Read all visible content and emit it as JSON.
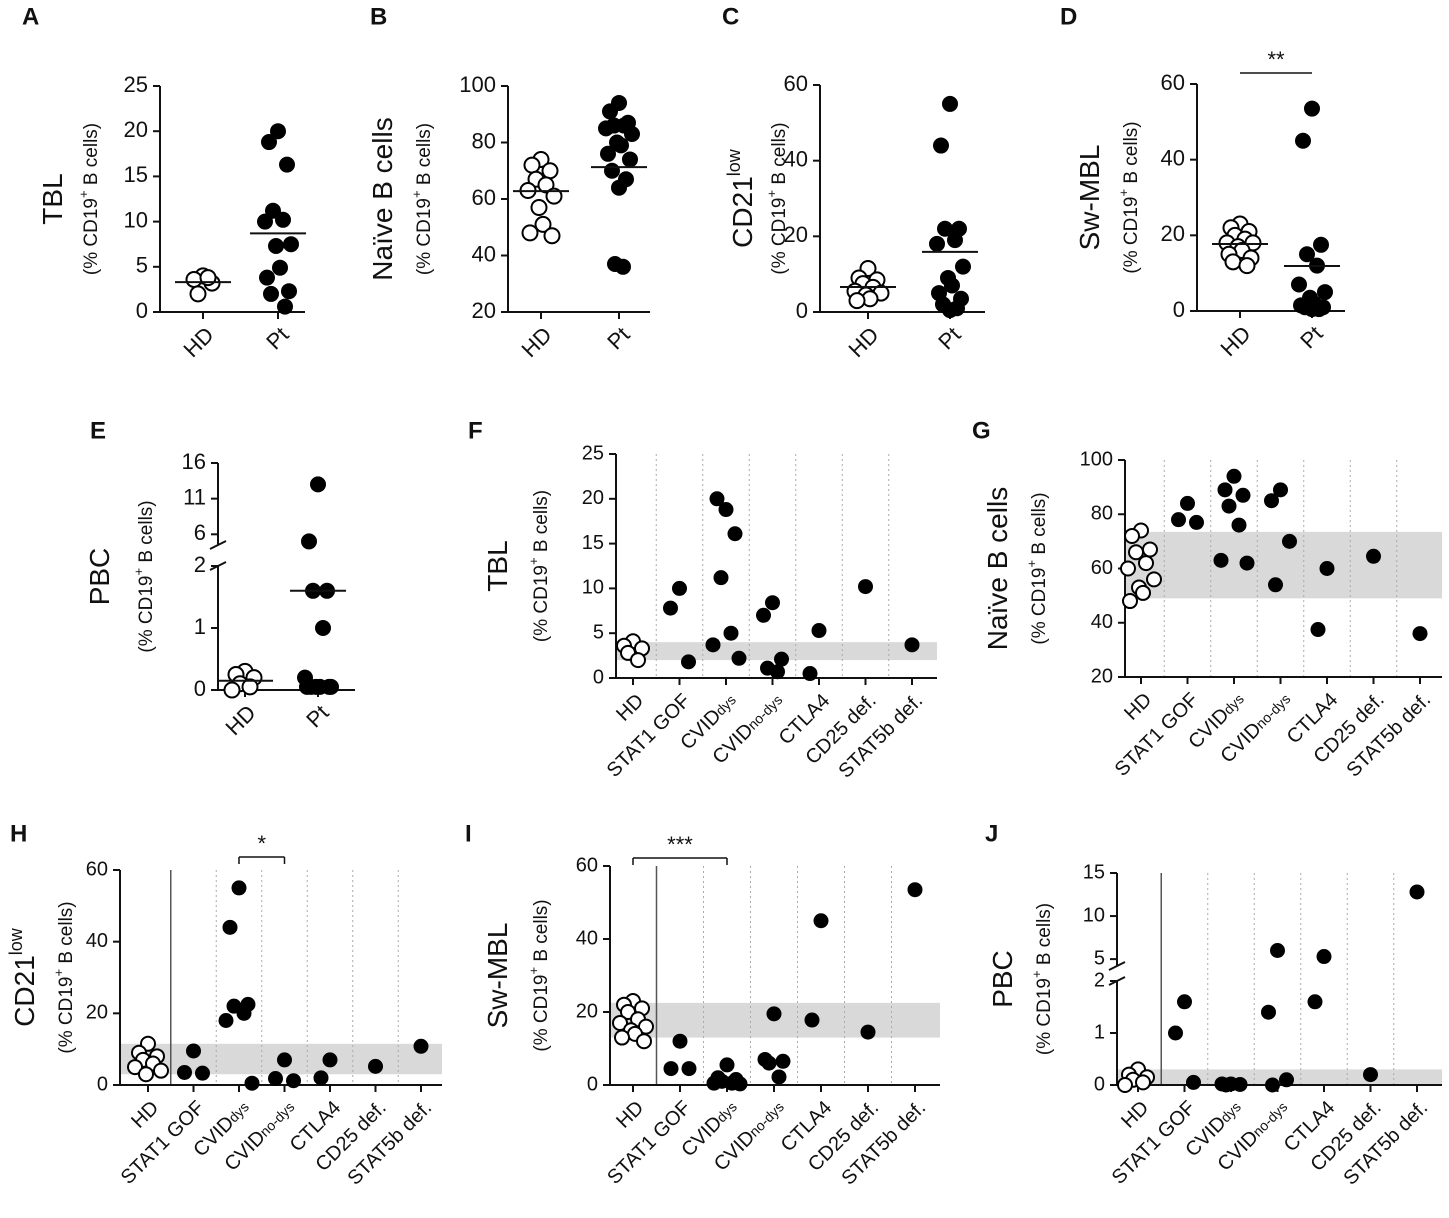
{
  "chart_data": [
    {
      "type": "scatter",
      "panel": "A",
      "ylabel": [
        "TBL"
      ],
      "ylabel_unit": [
        "(% CD19",
        "+",
        " B cells)"
      ],
      "categories": [
        "HD",
        "Pt"
      ],
      "markers": [
        "open",
        "filled"
      ],
      "groups": [
        [
          4.0,
          3.6,
          3.2,
          2.0,
          3.8
        ],
        [
          20,
          18.8,
          16.3,
          11.2,
          10.2,
          10.0,
          7.5,
          7.3,
          4.9,
          3.8,
          2.3,
          2.0,
          0.6
        ]
      ],
      "means": [
        3.3,
        8.7
      ],
      "ylim": [
        0,
        25
      ],
      "yticks": [
        0,
        5,
        10,
        15,
        20,
        25
      ]
    },
    {
      "type": "scatter",
      "panel": "B",
      "ylabel": [
        "Naïve B cells"
      ],
      "ylabel_unit": [
        "(% CD19",
        "+",
        " B cells)"
      ],
      "categories": [
        "HD",
        "Pt"
      ],
      "markers": [
        "open",
        "filled"
      ],
      "groups": [
        [
          74,
          72,
          70,
          67,
          65,
          63,
          61,
          57,
          51,
          48,
          47
        ],
        [
          94,
          91,
          87,
          86,
          86,
          85,
          83,
          80,
          79,
          76,
          74,
          70,
          67,
          64,
          37,
          36
        ]
      ],
      "means": [
        62.8,
        71.3
      ],
      "ylim": [
        20,
        100
      ],
      "yticks": [
        20,
        40,
        60,
        80,
        100
      ]
    },
    {
      "type": "scatter",
      "panel": "C",
      "ylabel": [
        "CD21",
        "low"
      ],
      "ylabel_unit": [
        "(% CD19",
        "+",
        " B cells)"
      ],
      "categories": [
        "HD",
        "Pt"
      ],
      "markers": [
        "open",
        "filled"
      ],
      "groups": [
        [
          11.5,
          9,
          8.5,
          7.5,
          6.5,
          5.5,
          5,
          4.5,
          3.5,
          3
        ],
        [
          55,
          44,
          22,
          22,
          19,
          18,
          12,
          9,
          7,
          5,
          3.5,
          2,
          1,
          0.5
        ]
      ],
      "means": [
        6.6,
        15.9
      ],
      "ylim": [
        0,
        60
      ],
      "yticks": [
        0,
        20,
        40,
        60
      ]
    },
    {
      "type": "scatter",
      "panel": "D",
      "ylabel": [
        "Sw-MBL"
      ],
      "ylabel_unit": [
        "(% CD19",
        "+",
        " B cells)"
      ],
      "categories": [
        "HD",
        "Pt"
      ],
      "markers": [
        "open",
        "filled"
      ],
      "groups": [
        [
          23,
          22,
          21,
          20,
          19,
          18,
          18,
          17,
          16,
          15,
          14,
          13,
          12
        ],
        [
          53.5,
          45,
          17.5,
          15,
          12,
          7,
          5,
          3.5,
          2,
          1.5,
          1,
          1,
          0.5,
          0.5
        ]
      ],
      "means": [
        17.7,
        11.9
      ],
      "ylim": [
        0,
        60
      ],
      "yticks": [
        0,
        20,
        40,
        60
      ],
      "significance": {
        "label": "**",
        "between": [
          0,
          1
        ]
      }
    },
    {
      "type": "scatter",
      "panel": "E",
      "ylabel": [
        "PBC"
      ],
      "ylabel_unit": [
        "(% CD19",
        "+",
        " B cells)"
      ],
      "categories": [
        "HD",
        "Pt"
      ],
      "markers": [
        "open",
        "filled"
      ],
      "groups": [
        [
          0.3,
          0.25,
          0.2,
          0.1,
          0.05,
          0
        ],
        [
          13,
          5,
          1.6,
          1.6,
          1.0,
          0.2,
          0.05,
          0.05,
          0.05,
          0.05,
          0.05,
          0.05
        ]
      ],
      "means": [
        0.15,
        1.6
      ],
      "ysegments": [
        {
          "ylim": [
            0,
            2
          ],
          "yticks": [
            0,
            1,
            2
          ]
        },
        {
          "ylim": [
            4.5,
            16
          ],
          "yticks": [
            6,
            11,
            16
          ]
        }
      ]
    },
    {
      "type": "scatter",
      "panel": "F",
      "ylabel": [
        "TBL"
      ],
      "ylabel_unit": [
        "(% CD19",
        "+",
        " B cells)"
      ],
      "categories": [
        "HD",
        "STAT1 GOF",
        [
          "CVID",
          "dys"
        ],
        [
          "CVID",
          "no-dys"
        ],
        "CTLA4",
        "CD25 def.",
        "STAT5b def."
      ],
      "markers": [
        "open",
        "filled",
        "filled",
        "filled",
        "filled",
        "filled",
        "filled"
      ],
      "groups": [
        [
          4.1,
          3.6,
          3.3,
          2.8,
          2.0
        ],
        [
          10,
          7.8,
          1.8
        ],
        [
          18.8,
          20,
          16.1,
          11.2,
          5.0,
          3.7,
          2.2
        ],
        [
          8.4,
          7.0,
          2.1,
          1.1,
          0.7
        ],
        [
          5.3,
          0.5
        ],
        [
          10.2
        ],
        [
          3.7
        ]
      ],
      "reference_band": [
        2,
        4
      ],
      "band_color": "#d9d9d9",
      "separators": "dotted",
      "control_divider": false,
      "ylim": [
        0,
        25
      ],
      "yticks": [
        0,
        5,
        10,
        15,
        20,
        25
      ]
    },
    {
      "type": "scatter",
      "panel": "G",
      "ylabel": [
        "Naïve B cells"
      ],
      "ylabel_unit": [
        "(% CD19",
        "+",
        " B cells)"
      ],
      "categories": [
        "HD",
        "STAT1 GOF",
        [
          "CVID",
          "dys"
        ],
        [
          "CVID",
          "no-dys"
        ],
        "CTLA4",
        "CD25 def.",
        "STAT5b def."
      ],
      "markers": [
        "open",
        "filled",
        "filled",
        "filled",
        "filled",
        "filled",
        "filled"
      ],
      "groups": [
        [
          74,
          72,
          67,
          66,
          62,
          60,
          56,
          53,
          51,
          48
        ],
        [
          84,
          78,
          77
        ],
        [
          94,
          89,
          87,
          83,
          76,
          63,
          62
        ],
        [
          89,
          85,
          70,
          54
        ],
        [
          60,
          37.5
        ],
        [
          64.5
        ],
        [
          36
        ]
      ],
      "reference_band": [
        49,
        73.5
      ],
      "band_color": "#d9d9d9",
      "separators": "dotted",
      "control_divider": false,
      "ylim": [
        20,
        100
      ],
      "yticks": [
        20,
        40,
        60,
        80,
        100
      ]
    },
    {
      "type": "scatter",
      "panel": "H",
      "ylabel": [
        "CD21",
        "low"
      ],
      "ylabel_unit": [
        "(% CD19",
        "+",
        " B cells)"
      ],
      "categories": [
        "HD",
        "STAT1 GOF",
        [
          "CVID",
          "dys"
        ],
        [
          "CVID",
          "no-dys"
        ],
        "CTLA4",
        "CD25 def.",
        "STAT5b def."
      ],
      "markers": [
        "open",
        "filled",
        "filled",
        "filled",
        "filled",
        "filled",
        "filled"
      ],
      "groups": [
        [
          11.5,
          9,
          8,
          7,
          6,
          5,
          4,
          3
        ],
        [
          9.5,
          3.5,
          3.3
        ],
        [
          55,
          44,
          22.5,
          22,
          20,
          18,
          0.5
        ],
        [
          7,
          1.8,
          1.2
        ],
        [
          7,
          2
        ],
        [
          5.2
        ],
        [
          10.8
        ]
      ],
      "reference_band": [
        3,
        11.5
      ],
      "band_color": "#d9d9d9",
      "separators": "dotted",
      "control_divider": true,
      "ylim": [
        0,
        60
      ],
      "yticks": [
        0,
        20,
        40,
        60
      ],
      "significance": {
        "label": "*",
        "between": [
          2,
          3
        ]
      }
    },
    {
      "type": "scatter",
      "panel": "I",
      "ylabel": [
        "Sw-MBL"
      ],
      "ylabel_unit": [
        "(% CD19",
        "+",
        " B cells)"
      ],
      "categories": [
        "HD",
        "STAT1 GOF",
        [
          "CVID",
          "dys"
        ],
        [
          "CVID",
          "no-dys"
        ],
        "CTLA4",
        "CD25 def.",
        "STAT5b def."
      ],
      "markers": [
        "open",
        "filled",
        "filled",
        "filled",
        "filled",
        "filled",
        "filled"
      ],
      "groups": [
        [
          23,
          22,
          21,
          20,
          18,
          17,
          16,
          15,
          14,
          13,
          12
        ],
        [
          12,
          4.5,
          4.5
        ],
        [
          5.5,
          2,
          1.5,
          1,
          0.5,
          0.5,
          0.3
        ],
        [
          19.5,
          7,
          6.5,
          6,
          2.2
        ],
        [
          45,
          17.8
        ],
        [
          14.5
        ],
        [
          53.5
        ]
      ],
      "reference_band": [
        13,
        22.5
      ],
      "band_color": "#d9d9d9",
      "separators": "dotted",
      "control_divider": true,
      "ylim": [
        0,
        60
      ],
      "yticks": [
        0,
        20,
        40,
        60
      ],
      "significance": {
        "label": "***",
        "between": [
          0,
          2
        ]
      }
    },
    {
      "type": "scatter",
      "panel": "J",
      "ylabel": [
        "PBC"
      ],
      "ylabel_unit": [
        "(% CD19",
        "+",
        " B cells)"
      ],
      "categories": [
        "HD",
        "STAT1 GOF",
        [
          "CVID",
          "dys"
        ],
        [
          "CVID",
          "no-dys"
        ],
        "CTLA4",
        "CD25 def.",
        "STAT5b def."
      ],
      "markers": [
        "open",
        "filled",
        "filled",
        "filled",
        "filled",
        "filled",
        "filled"
      ],
      "groups": [
        [
          0.3,
          0.2,
          0.15,
          0.1,
          0.05,
          0
        ],
        [
          1.6,
          1.0,
          0.05
        ],
        [
          0.02,
          0.02,
          0.01,
          0
        ],
        [
          6.0,
          1.4,
          0.1,
          0
        ],
        [
          5.3,
          1.6
        ],
        [
          0.2
        ],
        [
          12.8
        ]
      ],
      "reference_band": [
        0,
        0.3
      ],
      "band_color": "#d9d9d9",
      "separators": "dotted",
      "control_divider": true,
      "ysegments": [
        {
          "ylim": [
            0,
            2
          ],
          "yticks": [
            0,
            1,
            2
          ]
        },
        {
          "ylim": [
            4.2,
            15
          ],
          "yticks": [
            5,
            10,
            15
          ]
        }
      ]
    }
  ]
}
